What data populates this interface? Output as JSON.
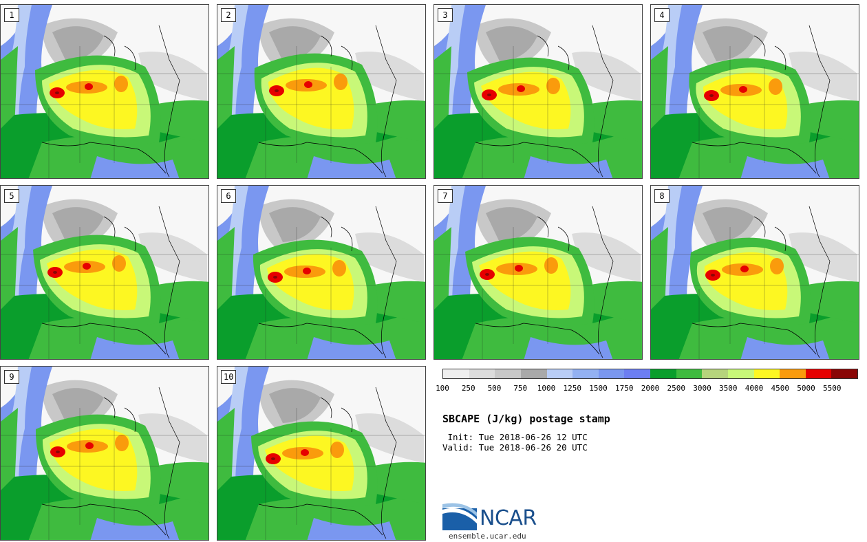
{
  "panels": [
    {
      "label": "1"
    },
    {
      "label": "2"
    },
    {
      "label": "3"
    },
    {
      "label": "4"
    },
    {
      "label": "5"
    },
    {
      "label": "6"
    },
    {
      "label": "7"
    },
    {
      "label": "8"
    },
    {
      "label": "9"
    },
    {
      "label": "10"
    }
  ],
  "legend": {
    "colors": [
      "#efefef",
      "#dcdcdc",
      "#c8c8c8",
      "#a9a9a9",
      "#b9cdf6",
      "#93b1f2",
      "#7a97f0",
      "#6c7ef2",
      "#0a9e2c",
      "#3fbb3f",
      "#b6d47c",
      "#c8f878",
      "#fdf722",
      "#fa9b0c",
      "#e60000",
      "#8a0606"
    ],
    "tick_labels": [
      "100",
      "250",
      "500",
      "750",
      "1000",
      "1250",
      "1500",
      "1750",
      "2000",
      "2500",
      "3000",
      "3500",
      "4000",
      "4500",
      "5000",
      "5500"
    ]
  },
  "title": "SBCAPE (J/kg) postage stamp",
  "init": " Init: Tue 2018-06-26 12 UTC",
  "valid": "Valid: Tue 2018-06-26 20 UTC",
  "logo": {
    "name": "ncar-logo",
    "text": "NCAR"
  },
  "site": "ensemble.ucar.edu"
}
